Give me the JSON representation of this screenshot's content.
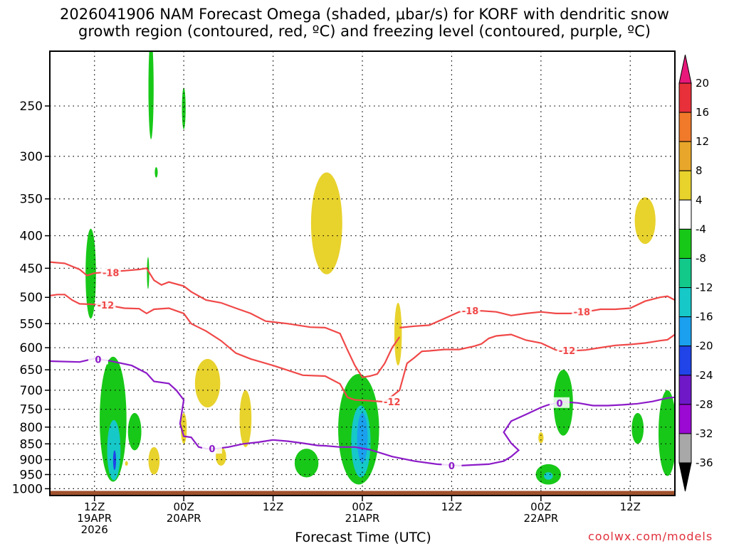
{
  "chart_data": {
    "type": "heatmap",
    "title_line1": "2026041906 NAM Forecast Omega (shaded, μbar/s) for KORF with dendritic snow",
    "title_line2": "growth region (contoured, red, ºC) and freezing level (contoured, purple, ºC)",
    "xlabel": "Forecast Time (UTC)",
    "ylabel": "",
    "y_scale": "log-pressure",
    "ylim": [
      1025,
      205
    ],
    "y_ticks": [
      250,
      300,
      350,
      400,
      450,
      500,
      550,
      600,
      650,
      700,
      750,
      800,
      850,
      900,
      950,
      1000
    ],
    "x_range_hours": [
      0,
      84
    ],
    "x_ticks": [
      {
        "hour": 6,
        "line1": "12Z",
        "line2": "19APR",
        "line3": "2026"
      },
      {
        "hour": 18,
        "line1": "00Z",
        "line2": "20APR",
        "line3": ""
      },
      {
        "hour": 30,
        "line1": "12Z",
        "line2": "",
        "line3": ""
      },
      {
        "hour": 42,
        "line1": "00Z",
        "line2": "21APR",
        "line3": ""
      },
      {
        "hour": 54,
        "line1": "12Z",
        "line2": "",
        "line3": ""
      },
      {
        "hour": 66,
        "line1": "00Z",
        "line2": "22APR",
        "line3": ""
      },
      {
        "hour": 78,
        "line1": "12Z",
        "line2": "",
        "line3": ""
      }
    ],
    "grid": true,
    "colorbar": {
      "labels": [
        "20",
        "16",
        "12",
        "8",
        "4",
        "-4",
        "-8",
        "-12",
        "-16",
        "-20",
        "-24",
        "-28",
        "-32",
        "-36"
      ],
      "colors": [
        "#e8303a",
        "#f07a2a",
        "#e8a72a",
        "#e8d22c",
        "#ffffff",
        "#18c818",
        "#12c98a",
        "#16c8c8",
        "#1aa0ee",
        "#2044e8",
        "#6e18c8",
        "#9a0ad2",
        "#a8a8a8"
      ],
      "top_arrow_color": "#e8187a",
      "bottom_arrow_color": "#000000"
    },
    "colors": {
      "temperature_contour": "#f04848",
      "freezing_contour": "#8c1ac8",
      "ground": "#a0522d"
    },
    "contours": [
      {
        "label": "-18",
        "kind": "temperature",
        "points": [
          [
            0,
            440
          ],
          [
            2,
            442
          ],
          [
            4,
            452
          ],
          [
            5,
            462
          ],
          [
            6,
            458
          ],
          [
            7,
            457
          ],
          [
            8,
            459
          ],
          [
            9,
            455
          ],
          [
            10,
            454
          ],
          [
            12,
            452
          ],
          [
            13,
            450
          ],
          [
            14,
            470
          ],
          [
            15,
            478
          ],
          [
            16,
            473
          ],
          [
            18,
            480
          ],
          [
            19,
            490
          ],
          [
            21,
            505
          ],
          [
            23,
            510
          ],
          [
            25,
            520
          ],
          [
            27,
            530
          ],
          [
            29,
            545
          ],
          [
            32,
            550
          ],
          [
            35,
            557
          ],
          [
            37,
            558
          ],
          [
            39,
            570
          ],
          [
            40,
            605
          ],
          [
            41,
            640
          ],
          [
            42,
            668
          ],
          [
            43,
            665
          ],
          [
            44,
            660
          ],
          [
            45,
            635
          ],
          [
            46,
            600
          ],
          [
            47,
            577
          ]
        ]
      },
      {
        "label": "-18",
        "kind": "temperature",
        "points": [
          [
            47,
            558
          ],
          [
            49,
            555
          ],
          [
            51,
            553
          ],
          [
            53,
            540
          ],
          [
            55,
            527
          ],
          [
            58,
            525
          ],
          [
            60,
            527
          ],
          [
            62,
            534
          ],
          [
            64,
            530
          ],
          [
            66,
            527
          ],
          [
            68,
            530
          ],
          [
            70,
            530
          ],
          [
            72,
            527
          ],
          [
            74,
            522
          ],
          [
            76,
            522
          ],
          [
            78,
            520
          ],
          [
            80,
            507
          ],
          [
            82,
            500
          ],
          [
            83,
            498
          ],
          [
            84,
            505
          ]
        ]
      },
      {
        "label": "-12",
        "kind": "temperature",
        "points": [
          [
            0,
            497
          ],
          [
            1,
            495
          ],
          [
            2,
            495
          ],
          [
            3,
            505
          ],
          [
            4,
            512
          ],
          [
            6,
            513
          ],
          [
            7,
            513
          ],
          [
            8,
            515
          ],
          [
            10,
            520
          ],
          [
            12,
            521
          ],
          [
            13,
            530
          ],
          [
            14,
            522
          ],
          [
            16,
            520
          ],
          [
            18,
            530
          ],
          [
            19,
            550
          ],
          [
            21,
            565
          ],
          [
            23,
            585
          ],
          [
            25,
            612
          ],
          [
            27,
            625
          ],
          [
            30,
            640
          ],
          [
            34,
            663
          ],
          [
            37,
            665
          ],
          [
            39,
            684
          ],
          [
            40,
            718
          ],
          [
            41,
            725
          ],
          [
            43,
            727
          ],
          [
            45,
            730
          ],
          [
            46,
            715
          ],
          [
            47,
            700
          ],
          [
            48,
            635
          ],
          [
            49,
            622
          ],
          [
            50,
            608
          ],
          [
            51,
            607
          ],
          [
            53,
            604
          ],
          [
            55,
            604
          ],
          [
            57,
            597
          ],
          [
            58,
            592
          ],
          [
            59,
            580
          ],
          [
            60,
            575
          ],
          [
            62,
            572
          ],
          [
            64,
            584
          ],
          [
            66,
            590
          ],
          [
            68,
            605
          ],
          [
            70,
            607
          ],
          [
            72,
            605
          ],
          [
            74,
            600
          ],
          [
            76,
            595
          ],
          [
            78,
            593
          ],
          [
            80,
            590
          ],
          [
            82,
            585
          ],
          [
            83,
            583
          ],
          [
            84,
            572
          ]
        ]
      },
      {
        "label": "0",
        "kind": "freezing",
        "points": [
          [
            0,
            630
          ],
          [
            4,
            632
          ],
          [
            6,
            624
          ],
          [
            8,
            629
          ],
          [
            11,
            640
          ],
          [
            13,
            658
          ],
          [
            14,
            678
          ],
          [
            16,
            683
          ],
          [
            17,
            700
          ],
          [
            18,
            725
          ],
          [
            17.5,
            790
          ],
          [
            18,
            827
          ],
          [
            19,
            830
          ],
          [
            20,
            860
          ],
          [
            21,
            865
          ],
          [
            22,
            866
          ],
          [
            24,
            860
          ],
          [
            26,
            850
          ],
          [
            28,
            845
          ],
          [
            30,
            838
          ],
          [
            32,
            842
          ],
          [
            34,
            848
          ],
          [
            36,
            855
          ],
          [
            37,
            856
          ],
          [
            39,
            860
          ],
          [
            41,
            860
          ],
          [
            43,
            868
          ],
          [
            46,
            890
          ],
          [
            49,
            905
          ],
          [
            52,
            915
          ],
          [
            55,
            920
          ],
          [
            59,
            915
          ],
          [
            61,
            905
          ],
          [
            62,
            890
          ],
          [
            63,
            870
          ],
          [
            62,
            848
          ],
          [
            61,
            815
          ],
          [
            62,
            783
          ],
          [
            64,
            764
          ],
          [
            66,
            745
          ],
          [
            67,
            738
          ],
          [
            69,
            730
          ],
          [
            71,
            733
          ],
          [
            73,
            740
          ],
          [
            75,
            740
          ],
          [
            77,
            738
          ],
          [
            79,
            735
          ],
          [
            81,
            729
          ],
          [
            83,
            720
          ],
          [
            84,
            718
          ]
        ]
      }
    ],
    "omega_regions": [
      {
        "shade": "-8",
        "color": "#18c818",
        "center": [
          5.5,
          470
        ],
        "width_h": 1.4,
        "pressure_span": [
          390,
          540
        ]
      },
      {
        "shade": "-8",
        "color": "#18c818",
        "center": [
          13.6,
          240
        ],
        "width_h": 0.7,
        "pressure_span": [
          195,
          282
        ]
      },
      {
        "shade": "-8",
        "color": "#18c818",
        "center": [
          18.0,
          250
        ],
        "width_h": 0.5,
        "pressure_span": [
          234,
          272
        ]
      },
      {
        "shade": "-8",
        "color": "#18c818",
        "center": [
          14.3,
          318
        ],
        "width_h": 0.4,
        "pressure_span": [
          312,
          324
        ]
      },
      {
        "shade": "-8",
        "color": "#18c818",
        "center": [
          13.2,
          458
        ],
        "width_h": 0.3,
        "pressure_span": [
          432,
          485
        ]
      },
      {
        "shade": "-8",
        "color": "#18c818",
        "center": [
          8.5,
          760
        ],
        "width_h": 3.6,
        "pressure_span": [
          620,
          975
        ]
      },
      {
        "shade": "-8",
        "color": "#18c818",
        "center": [
          11.4,
          815
        ],
        "width_h": 1.8,
        "pressure_span": [
          760,
          870
        ]
      },
      {
        "shade": "-8",
        "color": "#18c818",
        "center": [
          41.5,
          800
        ],
        "width_h": 5.5,
        "pressure_span": [
          660,
          985
        ]
      },
      {
        "shade": "-8",
        "color": "#18c818",
        "center": [
          34.5,
          905
        ],
        "width_h": 3.2,
        "pressure_span": [
          865,
          960
        ]
      },
      {
        "shade": "-8",
        "color": "#18c818",
        "center": [
          69.0,
          740
        ],
        "width_h": 2.6,
        "pressure_span": [
          650,
          825
        ]
      },
      {
        "shade": "-8",
        "color": "#18c818",
        "center": [
          67.0,
          955
        ],
        "width_h": 3.4,
        "pressure_span": [
          915,
          985
        ]
      },
      {
        "shade": "-8",
        "color": "#18c818",
        "center": [
          79.0,
          800
        ],
        "width_h": 1.6,
        "pressure_span": [
          760,
          850
        ]
      },
      {
        "shade": "-8",
        "color": "#18c818",
        "center": [
          83.0,
          790
        ],
        "width_h": 2.4,
        "pressure_span": [
          700,
          955
        ]
      },
      {
        "shade": "-12",
        "color": "#16c8c8",
        "center": [
          41.8,
          830
        ],
        "width_h": 2.6,
        "pressure_span": [
          740,
          960
        ]
      },
      {
        "shade": "-16",
        "color": "#1aa0ee",
        "center": [
          42.0,
          820
        ],
        "width_h": 1.4,
        "pressure_span": [
          760,
          910
        ]
      },
      {
        "shade": "-16",
        "color": "#1aa0ee",
        "center": [
          8.6,
          880
        ],
        "width_h": 1.2,
        "pressure_span": [
          820,
          960
        ]
      },
      {
        "shade": "-12",
        "color": "#16c8c8",
        "center": [
          8.6,
          870
        ],
        "width_h": 1.8,
        "pressure_span": [
          780,
          970
        ]
      },
      {
        "shade": "-20",
        "color": "#2044e8",
        "center": [
          8.7,
          900
        ],
        "width_h": 0.4,
        "pressure_span": [
          870,
          935
        ]
      },
      {
        "shade": "-12",
        "color": "#16c8c8",
        "center": [
          67.0,
          955
        ],
        "width_h": 1.2,
        "pressure_span": [
          942,
          968
        ]
      },
      {
        "shade": "4",
        "color": "#e8d22c",
        "center": [
          37.2,
          370
        ],
        "width_h": 4.2,
        "pressure_span": [
          318,
          460
        ]
      },
      {
        "shade": "4",
        "color": "#e8d22c",
        "center": [
          80.0,
          380
        ],
        "width_h": 2.8,
        "pressure_span": [
          348,
          412
        ]
      },
      {
        "shade": "4",
        "color": "#e8d22c",
        "center": [
          21.2,
          685
        ],
        "width_h": 3.4,
        "pressure_span": [
          625,
          745
        ]
      },
      {
        "shade": "4",
        "color": "#e8d22c",
        "center": [
          18.0,
          800
        ],
        "width_h": 0.8,
        "pressure_span": [
          760,
          850
        ]
      },
      {
        "shade": "4",
        "color": "#e8d22c",
        "center": [
          26.3,
          760
        ],
        "width_h": 1.6,
        "pressure_span": [
          700,
          860
        ]
      },
      {
        "shade": "4",
        "color": "#e8d22c",
        "center": [
          14.0,
          900
        ],
        "width_h": 1.5,
        "pressure_span": [
          860,
          950
        ]
      },
      {
        "shade": "4",
        "color": "#e8d22c",
        "center": [
          23.0,
          890
        ],
        "width_h": 1.4,
        "pressure_span": [
          860,
          920
        ]
      },
      {
        "shade": "4",
        "color": "#e8d22c",
        "center": [
          46.8,
          585
        ],
        "width_h": 1.0,
        "pressure_span": [
          510,
          640
        ]
      },
      {
        "shade": "4",
        "color": "#e8d22c",
        "center": [
          66.0,
          830
        ],
        "width_h": 0.7,
        "pressure_span": [
          815,
          848
        ]
      },
      {
        "shade": "4",
        "color": "#e8d22c",
        "center": [
          10.3,
          912
        ],
        "width_h": 0.4,
        "pressure_span": [
          905,
          920
        ]
      }
    ]
  },
  "credit": "coolwx.com/models"
}
